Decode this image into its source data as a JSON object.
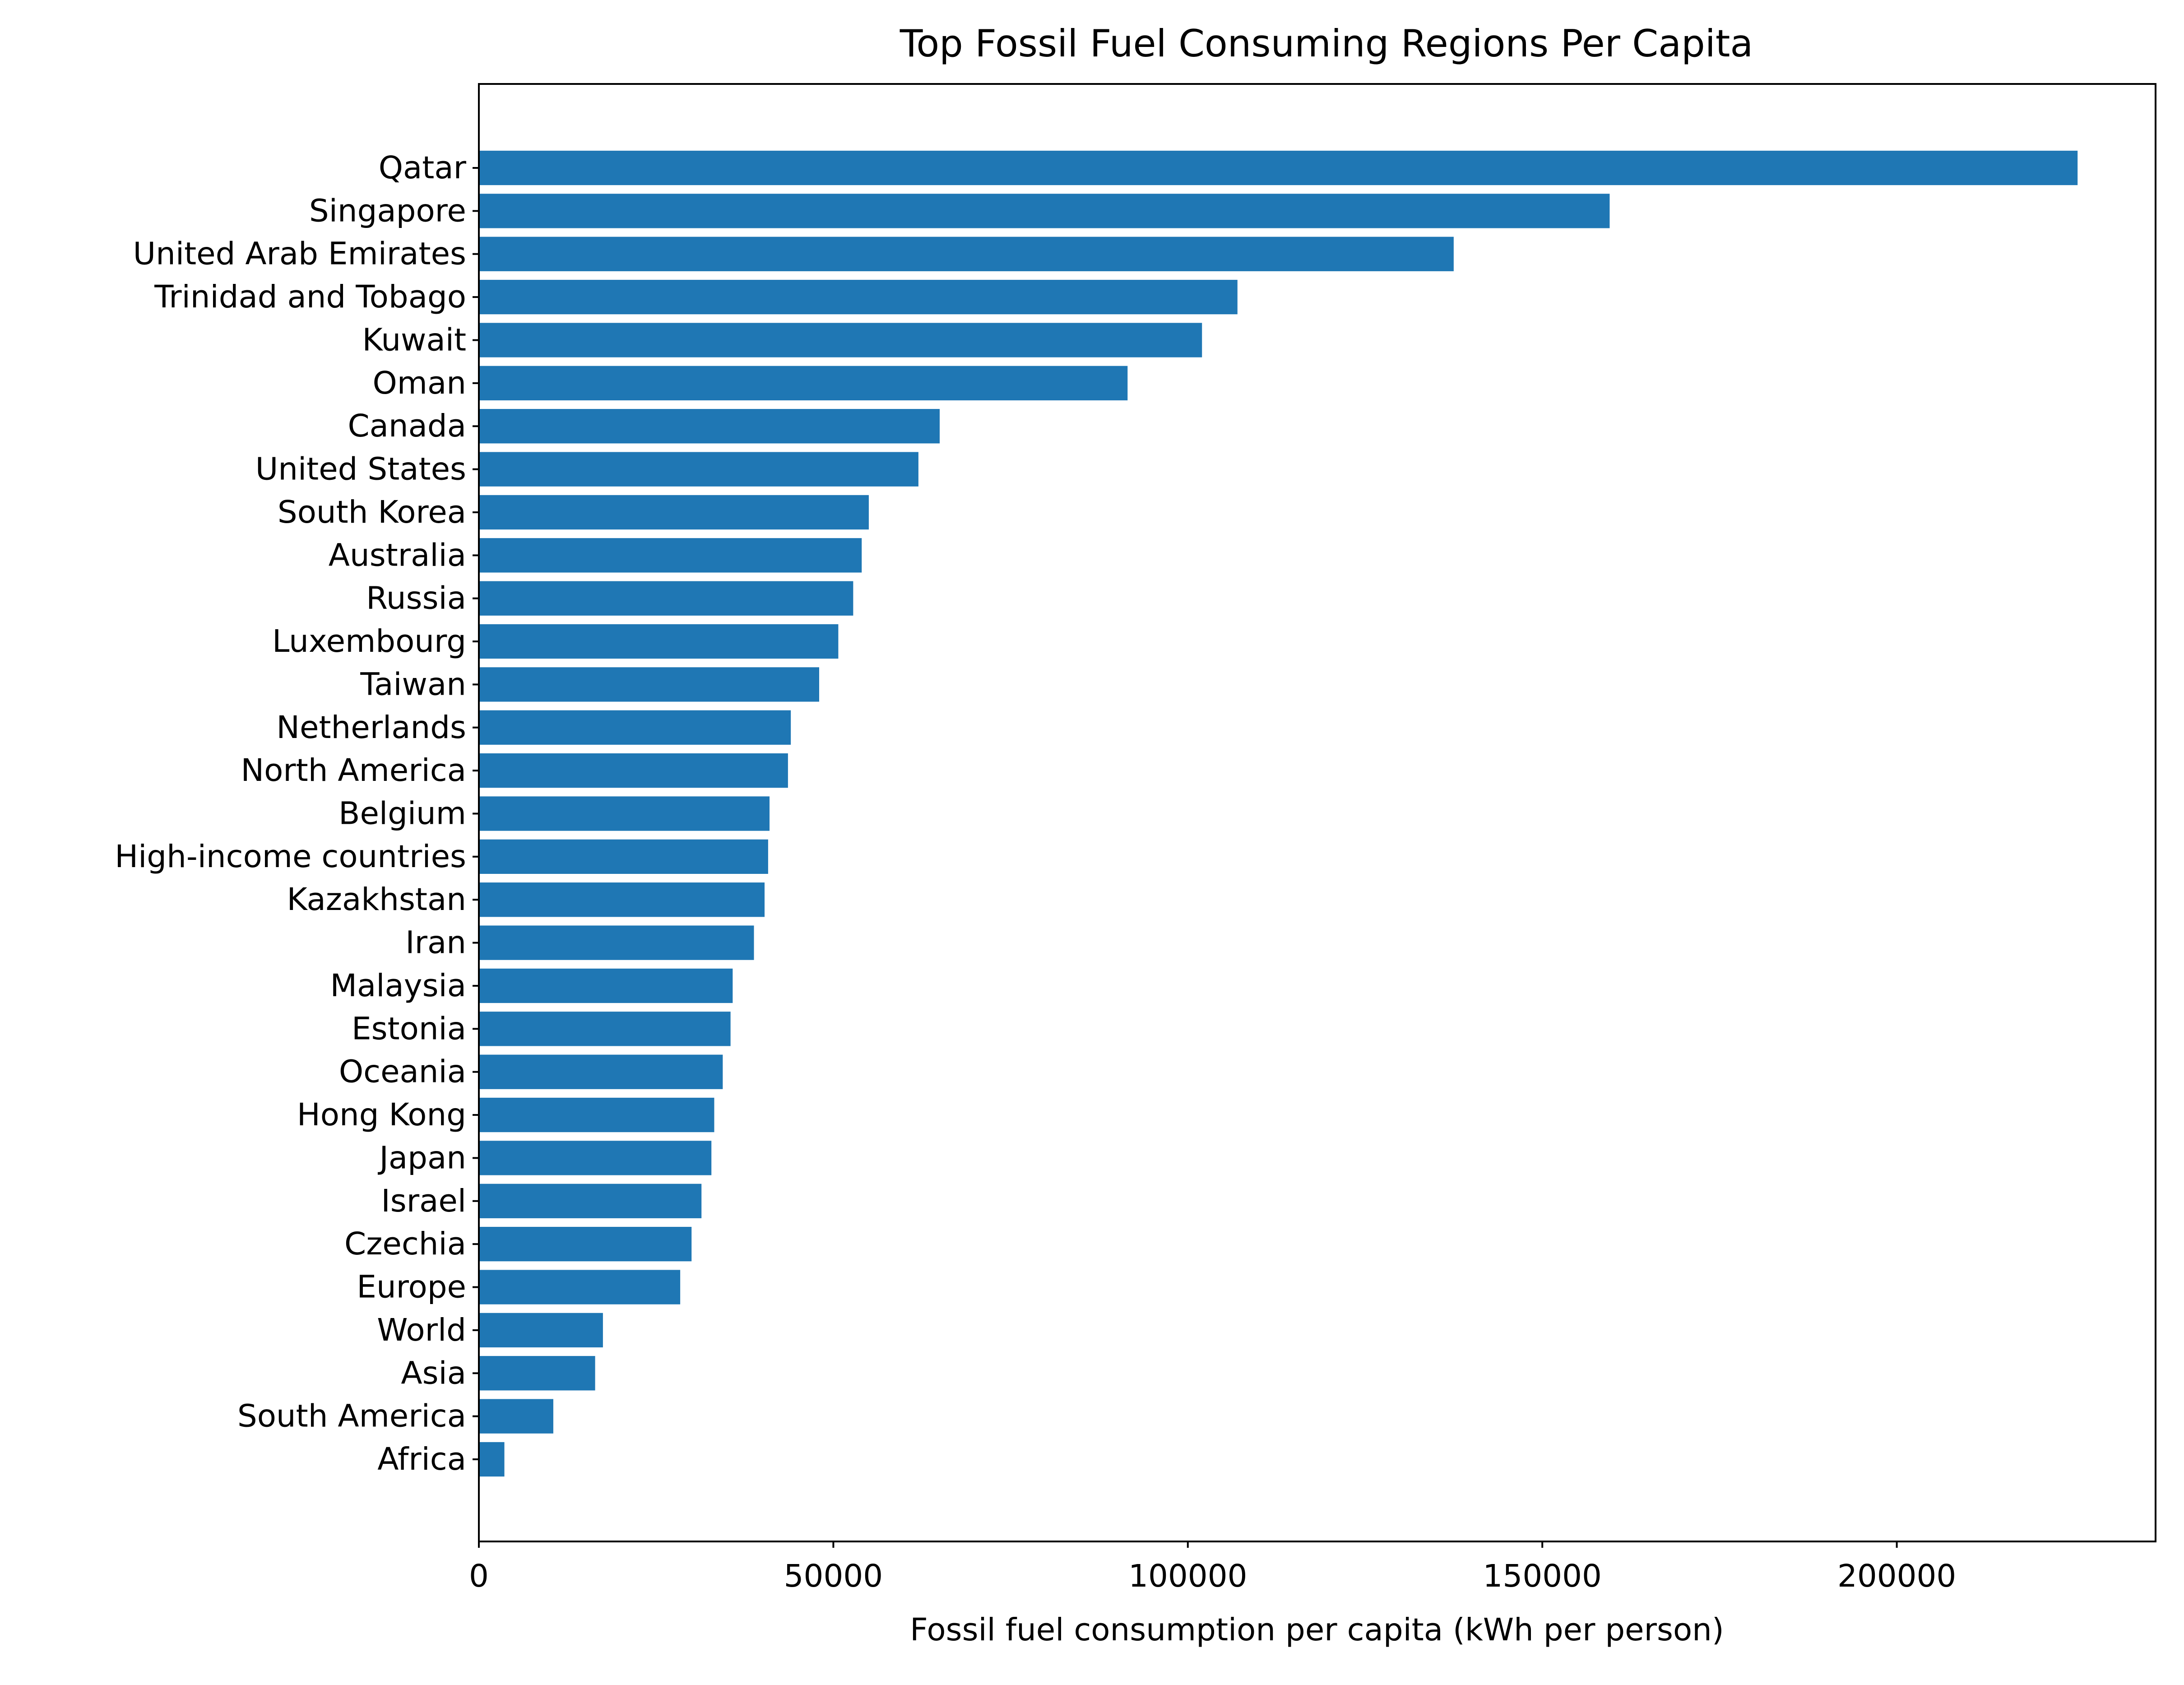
{
  "chart_data": {
    "type": "bar",
    "orientation": "horizontal",
    "title": "Top Fossil Fuel Consuming Regions Per Capita",
    "xlabel": "Fossil fuel consumption per capita (kWh per person)",
    "ylabel": "",
    "xlim": [
      0,
      236500
    ],
    "xticks": [
      0,
      50000,
      100000,
      150000,
      200000
    ],
    "xtick_labels": [
      "0",
      "50000",
      "100000",
      "150000",
      "200000"
    ],
    "grid": false,
    "bar_color": "#1f77b4",
    "categories": [
      "Qatar",
      "Singapore",
      "United Arab Emirates",
      "Trinidad and Tobago",
      "Kuwait",
      "Oman",
      "Canada",
      "United States",
      "South Korea",
      "Australia",
      "Russia",
      "Luxembourg",
      "Taiwan",
      "Netherlands",
      "North America",
      "Belgium",
      "High-income countries",
      "Kazakhstan",
      "Iran",
      "Malaysia",
      "Estonia",
      "Oceania",
      "Hong Kong",
      "Japan",
      "Israel",
      "Czechia",
      "Europe",
      "World",
      "Asia",
      "South America",
      "Africa"
    ],
    "values": [
      225500,
      159500,
      137500,
      107000,
      102000,
      91500,
      65000,
      62000,
      55000,
      54000,
      52800,
      50700,
      48000,
      44000,
      43600,
      41000,
      40800,
      40300,
      38800,
      35800,
      35500,
      34400,
      33200,
      32800,
      31400,
      30000,
      28400,
      17500,
      16400,
      10500,
      3600
    ]
  }
}
